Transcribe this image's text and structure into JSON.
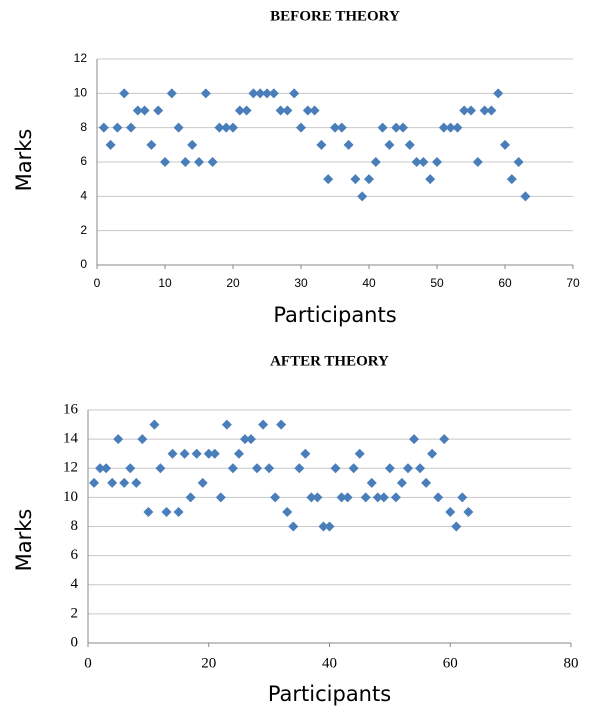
{
  "chart_data": [
    {
      "type": "scatter",
      "title": "BEFORE THEORY",
      "x_label": "Participants",
      "y_label": "Marks",
      "series": [
        {
          "color": "#4a7ebb",
          "x": [
            1,
            2,
            3,
            4,
            5,
            6,
            7,
            8,
            9,
            10,
            11,
            12,
            13,
            14,
            15,
            16,
            17,
            18,
            19,
            20,
            21,
            22,
            23,
            24,
            25,
            26,
            27,
            28,
            29,
            30,
            31,
            32,
            33,
            34,
            35,
            36,
            37,
            38,
            39,
            40,
            41,
            42,
            43,
            44,
            45,
            46,
            47,
            48,
            49,
            50,
            51,
            52,
            53,
            54,
            55,
            56,
            57,
            58,
            59,
            60,
            61,
            62,
            63
          ],
          "values": [
            8,
            7,
            8,
            10,
            8,
            9,
            9,
            7,
            9,
            6,
            10,
            8,
            6,
            7,
            6,
            10,
            6,
            8,
            8,
            8,
            9,
            9,
            10,
            10,
            10,
            10,
            9,
            9,
            10,
            8,
            9,
            9,
            7,
            5,
            8,
            8,
            7,
            5,
            4,
            5,
            6,
            8,
            7,
            8,
            8,
            7,
            6,
            6,
            5,
            6,
            8,
            8,
            8,
            9,
            9,
            6,
            9,
            9,
            10,
            7,
            5,
            6,
            4
          ]
        }
      ],
      "xlim": [
        0,
        70
      ],
      "xticks": [
        0,
        10,
        20,
        30,
        40,
        50,
        60,
        70
      ],
      "ylim": [
        0,
        12
      ],
      "yticks": [
        0,
        2,
        4,
        6,
        8,
        10,
        12
      ],
      "grid": true
    },
    {
      "type": "scatter",
      "title": "AFTER THEORY",
      "x_label": "Participants",
      "y_label": "Marks",
      "series": [
        {
          "color": "#4a7ebb",
          "x": [
            1,
            2,
            3,
            4,
            5,
            6,
            7,
            8,
            9,
            10,
            11,
            12,
            13,
            14,
            15,
            16,
            17,
            18,
            19,
            20,
            21,
            22,
            23,
            24,
            25,
            26,
            27,
            28,
            29,
            30,
            31,
            32,
            33,
            34,
            35,
            36,
            37,
            38,
            39,
            40,
            41,
            42,
            43,
            44,
            45,
            46,
            47,
            48,
            49,
            50,
            51,
            52,
            53,
            54,
            55,
            56,
            57,
            58,
            59,
            60,
            61,
            62,
            63
          ],
          "values": [
            11,
            12,
            12,
            11,
            14,
            11,
            12,
            11,
            14,
            9,
            15,
            12,
            9,
            13,
            9,
            13,
            10,
            13,
            11,
            13,
            13,
            10,
            15,
            12,
            13,
            14,
            14,
            12,
            15,
            12,
            10,
            15,
            9,
            8,
            12,
            13,
            10,
            10,
            8,
            8,
            12,
            10,
            10,
            12,
            13,
            10,
            11,
            10,
            10,
            12,
            10,
            11,
            12,
            14,
            12,
            11,
            13,
            10,
            14,
            9,
            8,
            10,
            9
          ]
        }
      ],
      "xlim": [
        0,
        80
      ],
      "xticks": [
        0,
        20,
        40,
        60,
        80
      ],
      "ylim": [
        0,
        16
      ],
      "yticks": [
        0,
        2,
        4,
        6,
        8,
        10,
        12,
        14,
        16
      ],
      "grid": true
    }
  ]
}
